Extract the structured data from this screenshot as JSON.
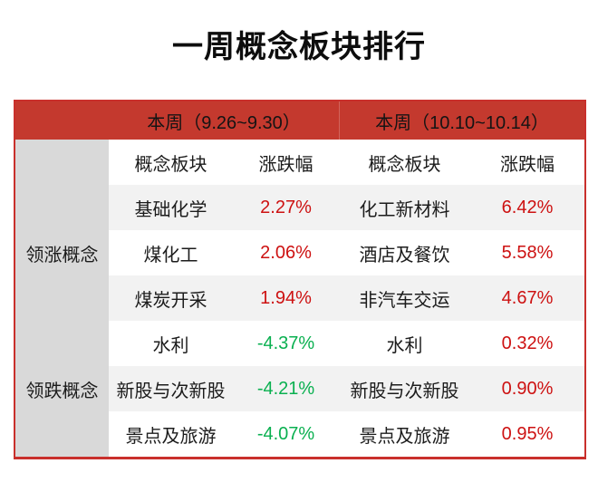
{
  "title": "一周概念板块排行",
  "colors": {
    "header_red": "#c4392e",
    "border_red": "#c9302c",
    "up_value_red": "#cd1111",
    "down_value_green": "#0ab050",
    "label_column_gray": "#d9d9d9",
    "alt_row_gray": "#f2f2f2"
  },
  "table": {
    "week_headers": [
      "本周（9.26~9.30）",
      "本周（10.10~10.14）"
    ],
    "col_headers": [
      "概念板块",
      "涨跌幅",
      "概念板块",
      "涨跌幅"
    ],
    "group_labels": [
      "领涨概念",
      "领跌概念"
    ],
    "rows": [
      {
        "w1_name": "基础化学",
        "w1_value": "2.27%",
        "w2_name": "化工新材料",
        "w2_value": "6.42%"
      },
      {
        "w1_name": "煤化工",
        "w1_value": "2.06%",
        "w2_name": "酒店及餐饮",
        "w2_value": "5.58%"
      },
      {
        "w1_name": "煤炭开采",
        "w1_value": "1.94%",
        "w2_name": "非汽车交运",
        "w2_value": "4.67%"
      },
      {
        "w1_name": "水利",
        "w1_value": "-4.37%",
        "w2_name": "水利",
        "w2_value": "0.32%"
      },
      {
        "w1_name": "新股与次新股",
        "w1_value": "-4.21%",
        "w2_name": "新股与次新股",
        "w2_value": "0.90%"
      },
      {
        "w1_name": "景点及旅游",
        "w1_value": "-4.07%",
        "w2_name": "景点及旅游",
        "w2_value": "0.95%"
      }
    ]
  },
  "chart_data": {
    "type": "table",
    "title": "一周概念板块排行",
    "column_groups": [
      "本周（9.26~9.30）",
      "本周（10.10~10.14）"
    ],
    "columns": [
      "概念板块",
      "涨跌幅",
      "概念板块",
      "涨跌幅"
    ],
    "row_groups": [
      {
        "label": "领涨概念",
        "rows": [
          {
            "week1_sector": "基础化学",
            "week1_change_pct": 2.27,
            "week2_sector": "化工新材料",
            "week2_change_pct": 6.42
          },
          {
            "week1_sector": "煤化工",
            "week1_change_pct": 2.06,
            "week2_sector": "酒店及餐饮",
            "week2_change_pct": 5.58
          },
          {
            "week1_sector": "煤炭开采",
            "week1_change_pct": 1.94,
            "week2_sector": "非汽车交运",
            "week2_change_pct": 4.67
          }
        ]
      },
      {
        "label": "领跌概念",
        "rows": [
          {
            "week1_sector": "水利",
            "week1_change_pct": -4.37,
            "week2_sector": "水利",
            "week2_change_pct": 0.32
          },
          {
            "week1_sector": "新股与次新股",
            "week1_change_pct": -4.21,
            "week2_sector": "新股与次新股",
            "week2_change_pct": 0.9
          },
          {
            "week1_sector": "景点及旅游",
            "week1_change_pct": -4.07,
            "week2_sector": "景点及旅游",
            "week2_change_pct": 0.95
          }
        ]
      }
    ],
    "value_color_rule": "positive=red, negative=green"
  }
}
